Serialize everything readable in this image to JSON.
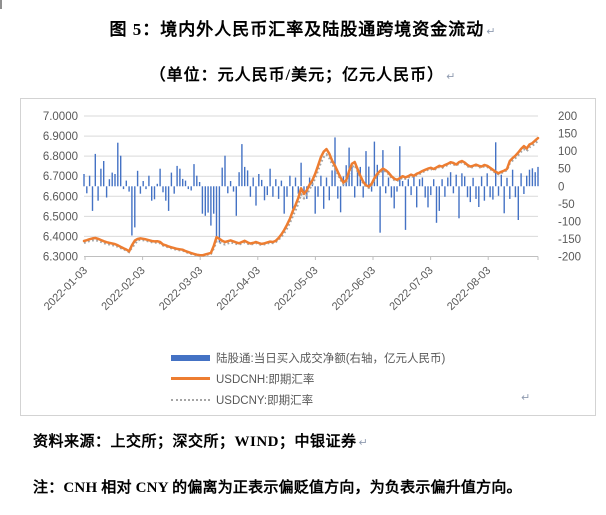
{
  "document": {
    "title": "图 5：境内外人民币汇率及陆股通跨境资金流动",
    "subtitle": "（单位：元人民币/美元；亿元人民币）",
    "pilcrow": "↵",
    "source_line": "资料来源：上交所；深交所；WIND；中银证券",
    "note_line": "注：CNH 相对 CNY 的偏离为正表示偏贬值方向，为负表示偏升值方向。"
  },
  "chart_data": {
    "type": "combo",
    "grid": true,
    "legend_position": "bottom",
    "x_tick_labels": [
      "2022-01-03",
      "2022-02-03",
      "2022-03-03",
      "2022-04-03",
      "2022-05-03",
      "2022-06-03",
      "2022-07-03",
      "2022-08-03"
    ],
    "left_axis": {
      "min": 6.3,
      "max": 7.0,
      "step": 0.1,
      "tick_labels": [
        "7.0000",
        "6.9000",
        "6.8000",
        "6.7000",
        "6.6000",
        "6.5000",
        "6.4000",
        "6.3000"
      ]
    },
    "right_axis": {
      "min": -200,
      "max": 200,
      "step": 50,
      "tick_labels": [
        "200",
        "150",
        "100",
        "50",
        "0",
        "-50",
        "-100",
        "-150",
        "-200"
      ]
    },
    "series": [
      {
        "name": "陆股通:当日买入成交净额(右轴，亿元人民币)",
        "type": "bar",
        "axis": "right",
        "color": "#4472C4",
        "values": [
          35,
          -20,
          30,
          -70,
          92,
          -41,
          50,
          72,
          -32,
          20,
          39,
          35,
          124,
          87,
          -8,
          16,
          -15,
          -140,
          -117,
          44,
          -21,
          15,
          -8,
          30,
          -41,
          -37,
          7,
          50,
          -17,
          -41,
          -70,
          39,
          -21,
          58,
          50,
          21,
          16,
          -8,
          -12,
          63,
          30,
          12,
          -78,
          -84,
          -75,
          -112,
          -78,
          -146,
          -160,
          53,
          87,
          -20,
          15,
          -15,
          -84,
          40,
          120,
          55,
          45,
          -30,
          25,
          -55,
          35,
          18,
          -40,
          -25,
          50,
          -30,
          20,
          -36,
          16,
          -78,
          -30,
          30,
          -64,
          25,
          -21,
          67,
          -15,
          -36,
          25,
          16,
          -78,
          -30,
          30,
          -64,
          25,
          -40,
          45,
          139,
          -35,
          -74,
          28,
          60,
          110,
          55,
          -32,
          40,
          55,
          -32,
          100,
          56,
          -15,
          127,
          61,
          -132,
          103,
          -20,
          25,
          -32,
          -63,
          -15,
          114,
          15,
          -124,
          20,
          -25,
          30,
          -60,
          20,
          25,
          -32,
          -60,
          -25,
          20,
          -104,
          -70,
          20,
          -30,
          25,
          40,
          -20,
          33,
          -91,
          37,
          28,
          -31,
          -45,
          24,
          -36,
          -59,
          28,
          -41,
          37,
          -31,
          -38,
          125,
          -27,
          33,
          -77,
          24,
          -36,
          47,
          -31,
          -96,
          37,
          -22,
          30,
          47,
          51,
          40,
          55
        ]
      },
      {
        "name": "USDCNH:即期汇率",
        "type": "line",
        "axis": "left",
        "color": "#ED7D31",
        "values": [
          6.377,
          6.381,
          6.386,
          6.39,
          6.392,
          6.388,
          6.382,
          6.376,
          6.371,
          6.368,
          6.365,
          6.362,
          6.356,
          6.348,
          6.341,
          6.335,
          6.326,
          6.356,
          6.379,
          6.387,
          6.39,
          6.388,
          6.385,
          6.381,
          6.377,
          6.375,
          6.376,
          6.372,
          6.36,
          6.356,
          6.35,
          6.346,
          6.342,
          6.338,
          6.336,
          6.334,
          6.327,
          6.322,
          6.317,
          6.313,
          6.309,
          6.307,
          6.306,
          6.31,
          6.314,
          6.318,
          6.352,
          6.396,
          6.388,
          6.378,
          6.372,
          6.376,
          6.38,
          6.375,
          6.37,
          6.366,
          6.372,
          6.378,
          6.37,
          6.365,
          6.368,
          6.372,
          6.367,
          6.363,
          6.366,
          6.37,
          6.374,
          6.372,
          6.378,
          6.392,
          6.41,
          6.432,
          6.458,
          6.488,
          6.525,
          6.556,
          6.592,
          6.64,
          6.612,
          6.63,
          6.658,
          6.68,
          6.712,
          6.752,
          6.795,
          6.822,
          6.835,
          6.812,
          6.778,
          6.752,
          6.722,
          6.692,
          6.668,
          6.68,
          6.726,
          6.762,
          6.771,
          6.736,
          6.702,
          6.672,
          6.655,
          6.648,
          6.662,
          6.69,
          6.712,
          6.726,
          6.738,
          6.73,
          6.718,
          6.7,
          6.688,
          6.682,
          6.69,
          6.7,
          6.694,
          6.7,
          6.708,
          6.702,
          6.712,
          6.718,
          6.726,
          6.732,
          6.738,
          6.742,
          6.736,
          6.744,
          6.752,
          6.748,
          6.756,
          6.762,
          6.77,
          6.766,
          6.758,
          6.77,
          6.776,
          6.768,
          6.756,
          6.748,
          6.752,
          6.758,
          6.752,
          6.748,
          6.756,
          6.752,
          6.742,
          6.732,
          6.722,
          6.715,
          6.722,
          6.728,
          6.736,
          6.776,
          6.79,
          6.802,
          6.818,
          6.836,
          6.85,
          6.838,
          6.858,
          6.865,
          6.878,
          6.89
        ]
      },
      {
        "name": "USDCNY:即期汇率",
        "type": "line",
        "axis": "left",
        "style": "dotted",
        "color": "#A5A5A5",
        "values": [
          6.368,
          6.372,
          6.377,
          6.38,
          6.381,
          6.378,
          6.373,
          6.367,
          6.363,
          6.36,
          6.357,
          6.354,
          6.349,
          6.342,
          6.336,
          6.33,
          6.322,
          6.344,
          6.361,
          6.38,
          6.383,
          6.381,
          6.378,
          6.375,
          6.371,
          6.369,
          6.37,
          6.366,
          6.355,
          6.351,
          6.345,
          6.341,
          6.337,
          6.333,
          6.331,
          6.33,
          6.323,
          6.318,
          6.313,
          6.31,
          6.306,
          6.304,
          6.303,
          6.306,
          6.31,
          6.313,
          6.34,
          6.374,
          6.37,
          6.364,
          6.36,
          6.365,
          6.37,
          6.367,
          6.363,
          6.36,
          6.365,
          6.37,
          6.364,
          6.36,
          6.363,
          6.367,
          6.362,
          6.358,
          6.361,
          6.365,
          6.369,
          6.367,
          6.372,
          6.384,
          6.398,
          6.416,
          6.44,
          6.468,
          6.5,
          6.53,
          6.564,
          6.61,
          6.59,
          6.608,
          6.636,
          6.66,
          6.69,
          6.728,
          6.768,
          6.795,
          6.808,
          6.79,
          6.76,
          6.737,
          6.71,
          6.682,
          6.66,
          6.67,
          6.712,
          6.745,
          6.755,
          6.724,
          6.694,
          6.664,
          6.648,
          6.642,
          6.655,
          6.682,
          6.704,
          6.718,
          6.73,
          6.723,
          6.711,
          6.693,
          6.681,
          6.676,
          6.683,
          6.693,
          6.687,
          6.693,
          6.701,
          6.695,
          6.705,
          6.711,
          6.72,
          6.726,
          6.732,
          6.736,
          6.73,
          6.738,
          6.746,
          6.742,
          6.75,
          6.756,
          6.764,
          6.76,
          6.752,
          6.764,
          6.77,
          6.762,
          6.75,
          6.742,
          6.746,
          6.752,
          6.746,
          6.742,
          6.75,
          6.746,
          6.736,
          6.726,
          6.716,
          6.71,
          6.716,
          6.722,
          6.73,
          6.765,
          6.778,
          6.79,
          6.805,
          6.822,
          6.835,
          6.824,
          6.844,
          6.852,
          6.864,
          6.876
        ]
      }
    ]
  }
}
